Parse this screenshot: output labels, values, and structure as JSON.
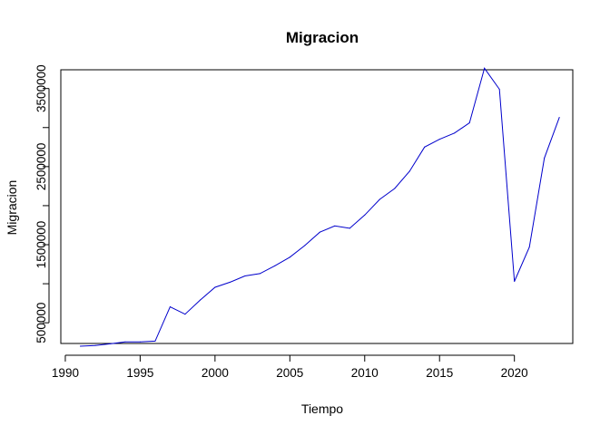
{
  "chart_data": {
    "type": "line",
    "title": "Migracion",
    "xlabel": "Tiempo",
    "ylabel": "Migracion",
    "xlim": [
      1990,
      2023
    ],
    "ylim": [
      250000,
      3700000
    ],
    "x_ticks": [
      1990,
      1995,
      2000,
      2005,
      2010,
      2015,
      2020
    ],
    "y_ticks": [
      500000,
      1000000,
      1500000,
      2000000,
      2500000,
      3000000,
      3500000
    ],
    "y_tick_labels": [
      "500000",
      "",
      "1500000",
      "",
      "2500000",
      "",
      "3500000"
    ],
    "grid": false,
    "legend": "none",
    "series": [
      {
        "color": "#0000cc",
        "x": [
          1991,
          1992,
          1993,
          1994,
          1995,
          1996,
          1997,
          1998,
          1999,
          2000,
          2001,
          2002,
          2003,
          2004,
          2005,
          2006,
          2007,
          2008,
          2009,
          2010,
          2011,
          2012,
          2013,
          2014,
          2015,
          2016,
          2017,
          2018,
          2019,
          2020,
          2021,
          2022,
          2023
        ],
        "values": [
          200000,
          210000,
          230000,
          255000,
          255000,
          265000,
          705000,
          610000,
          790000,
          955000,
          1020000,
          1100000,
          1130000,
          1230000,
          1340000,
          1490000,
          1660000,
          1740000,
          1710000,
          1880000,
          2080000,
          2220000,
          2440000,
          2750000,
          2850000,
          2930000,
          3060000,
          3760000,
          3490000,
          1030000,
          1470000,
          2610000,
          3130000
        ]
      }
    ]
  }
}
